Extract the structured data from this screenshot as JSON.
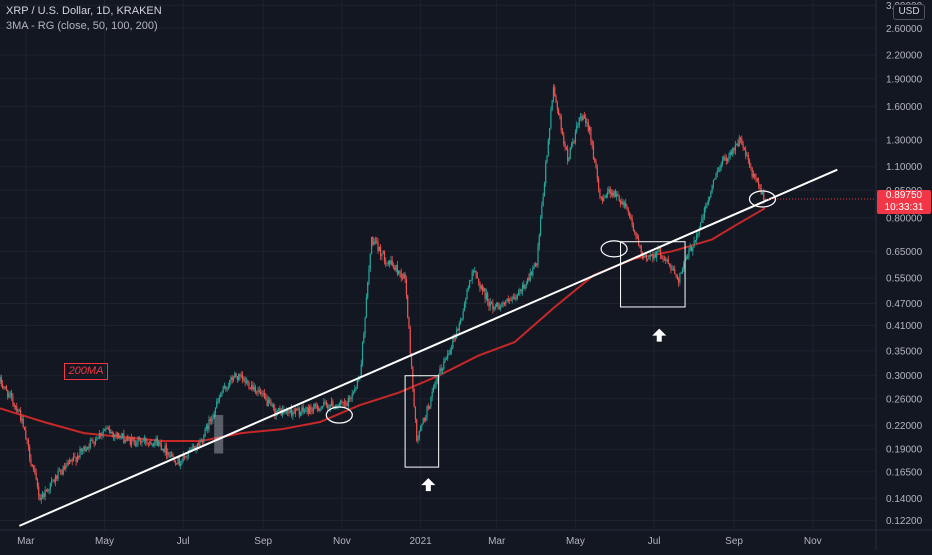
{
  "header": {
    "symbol": "XRP / U.S. Dollar, 1D, KRAKEN",
    "indicator": "3MA - RG (close, 50, 100, 200)"
  },
  "currency_badge": "USD",
  "price_badge": {
    "price": "0.89750",
    "countdown": "10:33:31"
  },
  "ma_label": "200MA",
  "colors": {
    "background": "#131722",
    "up": "#26a69a",
    "down": "#ef5350",
    "ma200": "#c62828",
    "trendline": "#ffffff",
    "price_badge": "#f23645",
    "axis_text": "#b2b5be"
  },
  "chart_data": {
    "type": "candlestick",
    "scale": "log",
    "y_ticks": [
      3.0,
      2.6,
      2.2,
      1.9,
      1.6,
      1.3,
      1.1,
      0.95,
      0.8,
      0.65,
      0.55,
      0.47,
      0.41,
      0.35,
      0.3,
      0.26,
      0.22,
      0.19,
      0.165,
      0.14,
      0.122
    ],
    "y_tick_labels": [
      "3.00000",
      "2.60000",
      "2.20000",
      "1.90000",
      "1.60000",
      "1.30000",
      "1.10000",
      "0.95000",
      "0.80000",
      "0.65000",
      "0.55000",
      "0.47000",
      "0.41000",
      "0.35000",
      "0.30000",
      "0.26000",
      "0.22000",
      "0.19000",
      "0.16500",
      "0.14000",
      "0.12200"
    ],
    "x_ticks": [
      {
        "label": "Mar",
        "date": "2020-03-01"
      },
      {
        "label": "May",
        "date": "2020-05-01"
      },
      {
        "label": "Jul",
        "date": "2020-07-01"
      },
      {
        "label": "Sep",
        "date": "2020-09-01"
      },
      {
        "label": "Nov",
        "date": "2020-11-01"
      },
      {
        "label": "2021",
        "date": "2021-01-01"
      },
      {
        "label": "Mar",
        "date": "2021-03-01"
      },
      {
        "label": "May",
        "date": "2021-05-01"
      },
      {
        "label": "Jul",
        "date": "2021-07-01"
      },
      {
        "label": "Sep",
        "date": "2021-09-01"
      },
      {
        "label": "Nov",
        "date": "2021-11-01"
      }
    ],
    "x_range": [
      "2020-02-10",
      "2021-12-20"
    ],
    "y_range": [
      0.115,
      3.1
    ],
    "price_path": [
      {
        "date": "2020-02-10",
        "price": 0.29
      },
      {
        "date": "2020-02-25",
        "price": 0.24
      },
      {
        "date": "2020-03-12",
        "price": 0.14
      },
      {
        "date": "2020-03-25",
        "price": 0.16
      },
      {
        "date": "2020-04-15",
        "price": 0.19
      },
      {
        "date": "2020-05-01",
        "price": 0.215
      },
      {
        "date": "2020-05-20",
        "price": 0.2
      },
      {
        "date": "2020-06-10",
        "price": 0.2
      },
      {
        "date": "2020-06-28",
        "price": 0.175
      },
      {
        "date": "2020-07-15",
        "price": 0.2
      },
      {
        "date": "2020-07-31",
        "price": 0.27
      },
      {
        "date": "2020-08-10",
        "price": 0.3
      },
      {
        "date": "2020-08-25",
        "price": 0.28
      },
      {
        "date": "2020-09-10",
        "price": 0.24
      },
      {
        "date": "2020-10-01",
        "price": 0.24
      },
      {
        "date": "2020-10-20",
        "price": 0.25
      },
      {
        "date": "2020-11-05",
        "price": 0.25
      },
      {
        "date": "2020-11-15",
        "price": 0.3
      },
      {
        "date": "2020-11-24",
        "price": 0.7
      },
      {
        "date": "2020-12-05",
        "price": 0.62
      },
      {
        "date": "2020-12-20",
        "price": 0.55
      },
      {
        "date": "2020-12-29",
        "price": 0.2
      },
      {
        "date": "2021-01-15",
        "price": 0.3
      },
      {
        "date": "2021-02-01",
        "price": 0.42
      },
      {
        "date": "2021-02-10",
        "price": 0.58
      },
      {
        "date": "2021-02-25",
        "price": 0.46
      },
      {
        "date": "2021-03-15",
        "price": 0.48
      },
      {
        "date": "2021-04-01",
        "price": 0.6
      },
      {
        "date": "2021-04-08",
        "price": 1.1
      },
      {
        "date": "2021-04-14",
        "price": 1.8
      },
      {
        "date": "2021-04-25",
        "price": 1.15
      },
      {
        "date": "2021-05-05",
        "price": 1.5
      },
      {
        "date": "2021-05-12",
        "price": 1.4
      },
      {
        "date": "2021-05-20",
        "price": 0.9
      },
      {
        "date": "2021-05-28",
        "price": 0.95
      },
      {
        "date": "2021-06-10",
        "price": 0.86
      },
      {
        "date": "2021-06-22",
        "price": 0.62
      },
      {
        "date": "2021-07-05",
        "price": 0.65
      },
      {
        "date": "2021-07-20",
        "price": 0.55
      },
      {
        "date": "2021-08-05",
        "price": 0.75
      },
      {
        "date": "2021-08-20",
        "price": 1.1
      },
      {
        "date": "2021-09-06",
        "price": 1.3
      },
      {
        "date": "2021-09-15",
        "price": 1.05
      },
      {
        "date": "2021-09-25",
        "price": 0.9
      }
    ],
    "ma200": [
      {
        "date": "2020-02-10",
        "value": 0.245
      },
      {
        "date": "2020-03-15",
        "value": 0.225
      },
      {
        "date": "2020-04-15",
        "value": 0.21
      },
      {
        "date": "2020-05-15",
        "value": 0.205
      },
      {
        "date": "2020-06-15",
        "value": 0.2
      },
      {
        "date": "2020-07-15",
        "value": 0.2
      },
      {
        "date": "2020-08-15",
        "value": 0.21
      },
      {
        "date": "2020-09-15",
        "value": 0.215
      },
      {
        "date": "2020-10-15",
        "value": 0.225
      },
      {
        "date": "2020-11-15",
        "value": 0.25
      },
      {
        "date": "2020-12-15",
        "value": 0.27
      },
      {
        "date": "2021-01-15",
        "value": 0.3
      },
      {
        "date": "2021-02-15",
        "value": 0.34
      },
      {
        "date": "2021-03-15",
        "value": 0.37
      },
      {
        "date": "2021-04-15",
        "value": 0.46
      },
      {
        "date": "2021-05-15",
        "value": 0.56
      },
      {
        "date": "2021-06-15",
        "value": 0.62
      },
      {
        "date": "2021-07-15",
        "value": 0.65
      },
      {
        "date": "2021-08-15",
        "value": 0.7
      },
      {
        "date": "2021-09-01",
        "value": 0.76
      },
      {
        "date": "2021-09-25",
        "value": 0.85
      }
    ],
    "trendline": [
      {
        "date": "2020-02-25",
        "price": 0.118
      },
      {
        "date": "2021-11-20",
        "price": 1.08
      }
    ],
    "annotations": {
      "boxes": [
        {
          "from": "2020-12-20",
          "to": "2021-01-15",
          "high": 0.3,
          "low": 0.17
        },
        {
          "from": "2021-06-05",
          "to": "2021-07-25",
          "high": 0.69,
          "low": 0.46
        }
      ],
      "ellipses": [
        {
          "date": "2020-10-30",
          "price": 0.235
        },
        {
          "date": "2021-05-31",
          "price": 0.66
        },
        {
          "date": "2021-09-23",
          "price": 0.9
        }
      ],
      "arrows": [
        {
          "date": "2021-01-07",
          "price": 0.152
        },
        {
          "date": "2021-07-05",
          "price": 0.385
        }
      ],
      "highlight": {
        "from": "2020-07-25",
        "to": "2020-08-01",
        "high": 0.235,
        "low": 0.185
      }
    }
  }
}
